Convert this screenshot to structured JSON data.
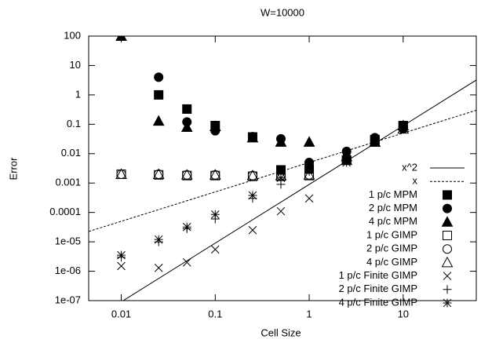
{
  "chart_data": {
    "type": "scatter",
    "title": "W=10000",
    "x_label": "Cell Size",
    "y_label": "Error",
    "log_x": true,
    "log_y": true,
    "xlim": [
      0.0045,
      60
    ],
    "ylim": [
      1e-07,
      100
    ],
    "xticks": [
      0.01,
      0.1,
      1,
      10
    ],
    "yticks": [
      {
        "value": 1e-07,
        "label": "1e-07"
      },
      {
        "value": 1e-06,
        "label": "1e-06"
      },
      {
        "value": 1e-05,
        "label": "1e-05"
      },
      0.0001,
      0.001,
      0.01,
      0.1,
      1,
      10,
      100
    ],
    "legend": "right",
    "series": [
      {
        "name": "x^2",
        "kind": "line",
        "dash": false,
        "color": "#000000",
        "x": [
          0.0105,
          60
        ],
        "values": [
          1e-07,
          3.2
        ]
      },
      {
        "name": "x",
        "kind": "line",
        "dash": true,
        "color": "#000000",
        "x": [
          0.0045,
          60
        ],
        "values": [
          2.25e-05,
          0.3
        ]
      },
      {
        "name": "1 p/c MPM",
        "kind": "points",
        "marker": "square-filled",
        "color": "#000000",
        "x": [
          0.01,
          0.025,
          0.05,
          0.1,
          0.25,
          0.5,
          1,
          2.5,
          5,
          10
        ],
        "values": [
          null,
          1,
          0.33,
          0.09,
          0.037,
          0.0028,
          0.003,
          0.006,
          0.03,
          0.09
        ]
      },
      {
        "name": "2 p/c MPM",
        "kind": "points",
        "marker": "circle-filled",
        "color": "#000000",
        "x": [
          0.01,
          0.025,
          0.05,
          0.1,
          0.25,
          0.5,
          1,
          2.5,
          5,
          10
        ],
        "values": [
          null,
          4,
          0.12,
          0.06,
          0.038,
          0.032,
          0.005,
          0.012,
          0.035,
          0.07
        ]
      },
      {
        "name": "4 p/c MPM",
        "kind": "points",
        "marker": "triangle-filled",
        "color": "#000000",
        "x": [
          0.01,
          0.025,
          0.05,
          0.1,
          0.25,
          0.5,
          1,
          2.5,
          5,
          10
        ],
        "values": [
          100,
          0.13,
          0.08,
          0.085,
          0.035,
          0.025,
          0.025,
          0.008,
          0.025,
          0.09
        ]
      },
      {
        "name": "1 p/c GIMP",
        "kind": "points",
        "marker": "square-open",
        "color": "#000000",
        "x": [
          0.01,
          0.025,
          0.05,
          0.1,
          0.25,
          0.5,
          1,
          2.5,
          5,
          10
        ],
        "values": [
          0.002,
          0.0019,
          0.0018,
          0.0018,
          0.0017,
          0.0017,
          0.0018,
          0.006,
          0.03,
          0.09
        ]
      },
      {
        "name": "2 p/c GIMP",
        "kind": "points",
        "marker": "circle-open",
        "color": "#000000",
        "x": [
          0.01,
          0.025,
          0.05,
          0.1,
          0.25,
          0.5,
          1,
          2.5,
          5,
          10
        ],
        "values": [
          0.002,
          0.002,
          0.0019,
          0.0019,
          0.0018,
          0.0018,
          0.0019,
          0.007,
          0.03,
          0.08
        ]
      },
      {
        "name": "4 p/c GIMP",
        "kind": "points",
        "marker": "triangle-open",
        "color": "#000000",
        "x": [
          0.01,
          0.025,
          0.05,
          0.1,
          0.25,
          0.5,
          1,
          2.5,
          5,
          10
        ],
        "values": [
          0.002,
          0.002,
          0.0019,
          0.0019,
          0.0018,
          0.0018,
          0.0019,
          0.006,
          0.025,
          0.07
        ]
      },
      {
        "name": "1 p/c Finite GIMP",
        "kind": "points",
        "marker": "x",
        "color": "#000000",
        "x": [
          0.01,
          0.025,
          0.05,
          0.1,
          0.25,
          0.5,
          1,
          2.5,
          5,
          10
        ],
        "values": [
          1.5e-06,
          1.3e-06,
          2e-06,
          5.5e-06,
          2.5e-05,
          0.00011,
          0.0003,
          0.005,
          0.025,
          0.08
        ]
      },
      {
        "name": "2 p/c Finite GIMP",
        "kind": "points",
        "marker": "plus",
        "color": "#000000",
        "x": [
          0.01,
          0.025,
          0.05,
          0.1,
          0.25,
          0.5,
          1,
          2.5,
          5,
          10
        ],
        "values": [
          3e-06,
          1e-05,
          2.8e-05,
          6e-05,
          0.0003,
          0.0009,
          0.0025,
          0.005,
          0.03,
          0.08
        ]
      },
      {
        "name": "4 p/c Finite GIMP",
        "kind": "points",
        "marker": "star",
        "color": "#000000",
        "x": [
          0.01,
          0.025,
          0.05,
          0.1,
          0.25,
          0.5,
          1,
          2.5,
          5,
          10
        ],
        "values": [
          3.5e-06,
          1.2e-05,
          3.2e-05,
          8.5e-05,
          0.00038,
          0.0015,
          0.003,
          0.007,
          0.03,
          0.08
        ]
      }
    ]
  }
}
